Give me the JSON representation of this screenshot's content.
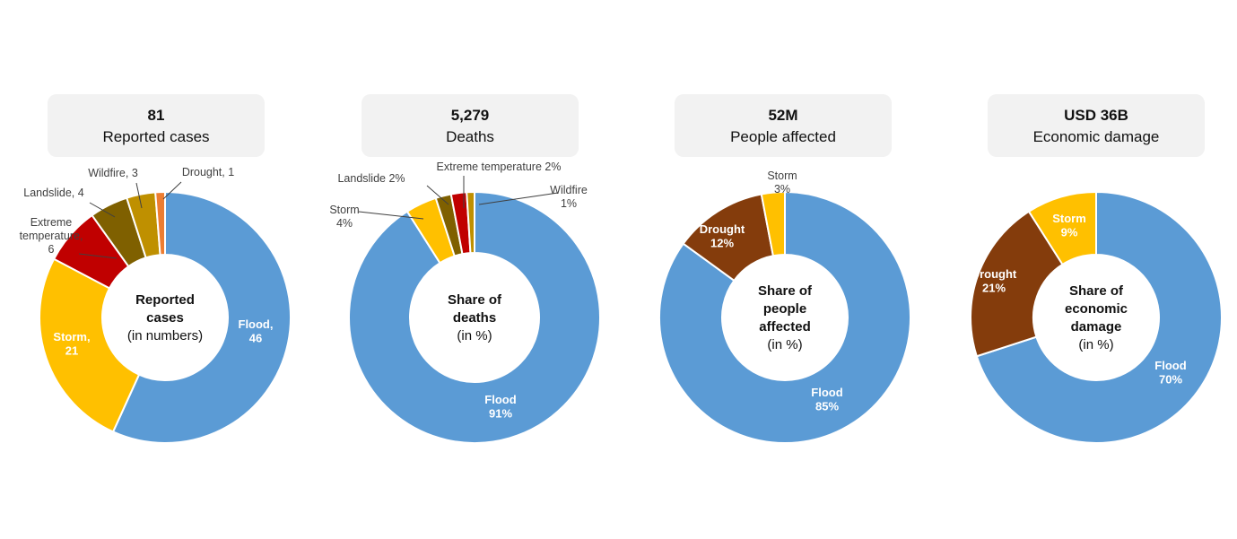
{
  "colors": {
    "flood": "#5B9BD5",
    "storm": "#FFC000",
    "extreme": "#C00000",
    "landslide": "#7F6000",
    "wildfire": "#BF9000",
    "drought_orange": "#ED7D31",
    "drought_brown": "#843C0C"
  },
  "headers": [
    {
      "value": "81",
      "label": "Reported cases"
    },
    {
      "value": "5,279",
      "label": "Deaths"
    },
    {
      "value": "52M",
      "label": "People affected"
    },
    {
      "value": "USD 36B",
      "label": "Economic damage"
    }
  ],
  "chart_data": [
    {
      "type": "pie",
      "title": "Reported cases",
      "center_text": [
        {
          "t": "Reported",
          "b": true
        },
        {
          "t": "cases",
          "b": true
        },
        {
          "t": "(in numbers)",
          "b": false
        }
      ],
      "slices": [
        {
          "name": "Flood",
          "value": 46,
          "color": "#5B9BD5",
          "label": [
            "Flood,",
            "46"
          ]
        },
        {
          "name": "Storm",
          "value": 21,
          "color": "#FFC000",
          "label": [
            "Storm,",
            "21"
          ]
        },
        {
          "name": "Extreme temperature",
          "value": 6,
          "color": "#C00000",
          "label": [
            "Extreme",
            "temperature,",
            "6"
          ]
        },
        {
          "name": "Landslide",
          "value": 4,
          "color": "#7F6000",
          "label": [
            "Landslide, 4"
          ]
        },
        {
          "name": "Wildfire",
          "value": 3,
          "color": "#BF9000",
          "label": [
            "Wildfire, 3"
          ]
        },
        {
          "name": "Drought",
          "value": 1,
          "color": "#ED7D31",
          "label": [
            "Drought, 1"
          ]
        }
      ]
    },
    {
      "type": "pie",
      "title": "Deaths",
      "center_text": [
        {
          "t": "Share of",
          "b": true
        },
        {
          "t": "deaths",
          "b": true
        },
        {
          "t": "(in %)",
          "b": false
        }
      ],
      "slices": [
        {
          "name": "Flood",
          "value": 91,
          "color": "#5B9BD5",
          "label": [
            "Flood",
            "91%"
          ]
        },
        {
          "name": "Storm",
          "value": 4,
          "color": "#FFC000",
          "label": [
            "Storm",
            "4%"
          ]
        },
        {
          "name": "Landslide",
          "value": 2,
          "color": "#7F6000",
          "label": [
            "Landslide 2%"
          ]
        },
        {
          "name": "Extreme temperature",
          "value": 2,
          "color": "#C00000",
          "label": [
            "Extreme temperature 2%"
          ]
        },
        {
          "name": "Wildfire",
          "value": 1,
          "color": "#BF9000",
          "label": [
            "Wildfire",
            "1%"
          ]
        }
      ]
    },
    {
      "type": "pie",
      "title": "People affected",
      "center_text": [
        {
          "t": "Share of",
          "b": true
        },
        {
          "t": "people",
          "b": true
        },
        {
          "t": "affected",
          "b": true
        },
        {
          "t": "(in %)",
          "b": false
        }
      ],
      "slices": [
        {
          "name": "Flood",
          "value": 85,
          "color": "#5B9BD5",
          "label": [
            "Flood",
            "85%"
          ]
        },
        {
          "name": "Drought",
          "value": 12,
          "color": "#843C0C",
          "label": [
            "Drought",
            "12%"
          ]
        },
        {
          "name": "Storm",
          "value": 3,
          "color": "#FFC000",
          "label": [
            "Storm",
            "3%"
          ]
        }
      ]
    },
    {
      "type": "pie",
      "title": "Economic damage",
      "center_text": [
        {
          "t": "Share of",
          "b": true
        },
        {
          "t": "economic",
          "b": true
        },
        {
          "t": "damage",
          "b": true
        },
        {
          "t": "(in %)",
          "b": false
        }
      ],
      "slices": [
        {
          "name": "Flood",
          "value": 70,
          "color": "#5B9BD5",
          "label": [
            "Flood",
            "70%"
          ]
        },
        {
          "name": "Drought",
          "value": 21,
          "color": "#843C0C",
          "label": [
            "Drought",
            "21%"
          ]
        },
        {
          "name": "Storm",
          "value": 9,
          "color": "#FFC000",
          "label": [
            "Storm",
            "9%"
          ]
        }
      ]
    }
  ]
}
